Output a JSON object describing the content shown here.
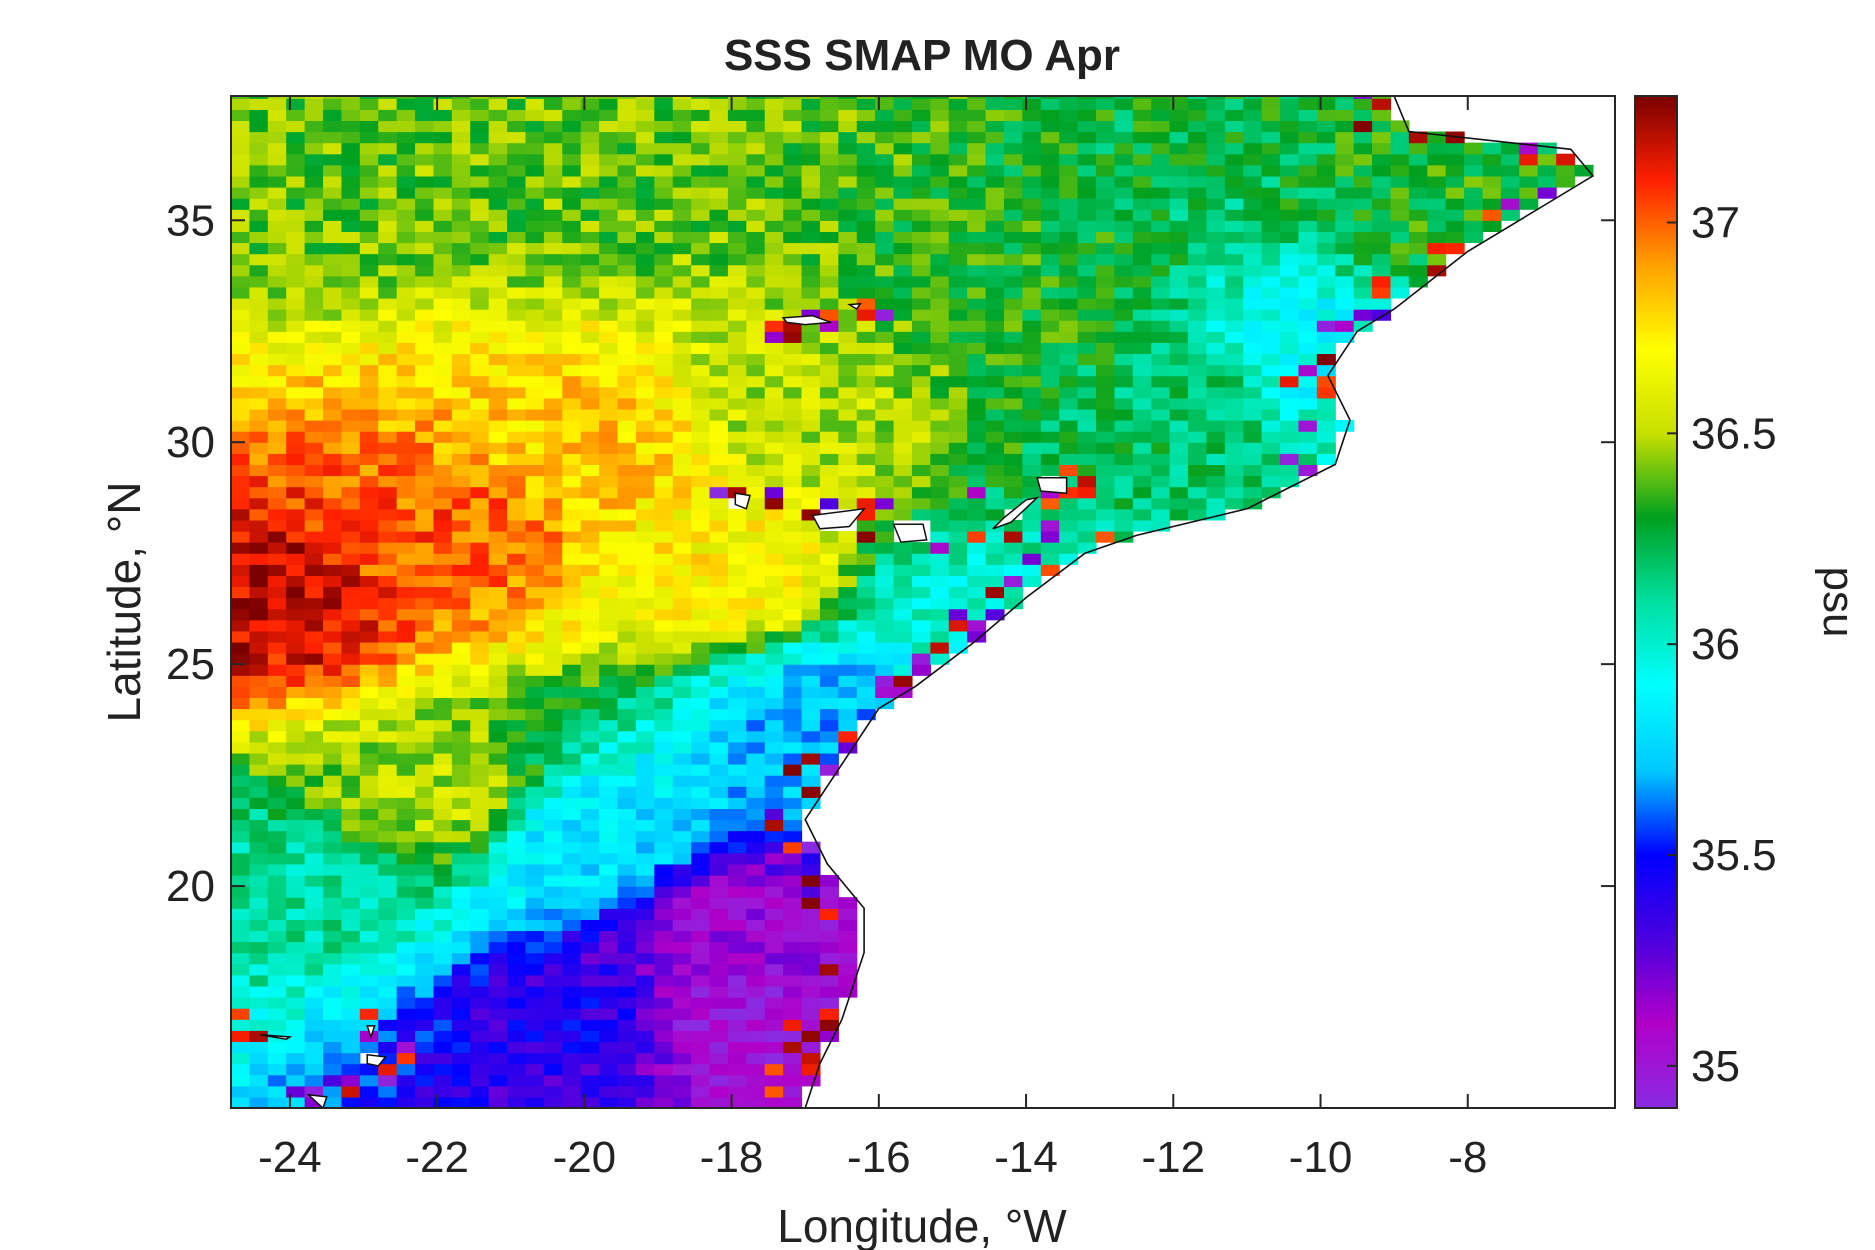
{
  "chart_data": {
    "type": "heatmap",
    "title": "SSS SMAP MO Apr",
    "xlabel": "Longitude, °W",
    "ylabel": "Latitude, °N",
    "colorbar_label": "psu",
    "xlim": [
      -24.8,
      -6.0
    ],
    "ylim": [
      15.0,
      37.8
    ],
    "xticks": [
      -24,
      -22,
      -20,
      -18,
      -16,
      -14,
      -12,
      -10,
      -8
    ],
    "xtick_labels": [
      "-24",
      "-22",
      "-20",
      "-18",
      "-16",
      "-14",
      "-12",
      "-10",
      "-8"
    ],
    "yticks": [
      20,
      25,
      30,
      35
    ],
    "ytick_labels": [
      "20",
      "25",
      "30",
      "35"
    ],
    "colorbar_range": [
      34.9,
      37.3
    ],
    "colorbar_ticks": [
      35,
      35.5,
      36,
      36.5,
      37
    ],
    "colorbar_tick_labels": [
      "35",
      "35.5",
      "36",
      "36.5",
      "37"
    ],
    "colormap": [
      "#8a2be2",
      "#b000c8",
      "#4b00e0",
      "#0000ff",
      "#00c8ff",
      "#00ffff",
      "#00e0a0",
      "#00a020",
      "#c8e000",
      "#ffff00",
      "#ffa000",
      "#ff2000",
      "#7a0000"
    ],
    "grid_resolution_deg": 0.25,
    "field_description_points": [
      {
        "lon": -24.5,
        "lat": 26.5,
        "sss": 37.2
      },
      {
        "lon": -22,
        "lat": 28,
        "sss": 37.0
      },
      {
        "lon": -20,
        "lat": 30,
        "sss": 36.8
      },
      {
        "lon": -18,
        "lat": 27,
        "sss": 36.7
      },
      {
        "lon": -17,
        "lat": 31,
        "sss": 36.5
      },
      {
        "lon": -14,
        "lat": 33,
        "sss": 36.3
      },
      {
        "lon": -12,
        "lat": 31,
        "sss": 36.2
      },
      {
        "lon": -10,
        "lat": 32,
        "sss": 35.9
      },
      {
        "lon": -8,
        "lat": 35,
        "sss": 36.3
      },
      {
        "lon": -24,
        "lat": 36,
        "sss": 36.4
      },
      {
        "lon": -20,
        "lat": 36,
        "sss": 36.4
      },
      {
        "lon": -22,
        "lat": 22,
        "sss": 36.5
      },
      {
        "lon": -24,
        "lat": 20,
        "sss": 36.1
      },
      {
        "lon": -20,
        "lat": 21,
        "sss": 35.8
      },
      {
        "lon": -18,
        "lat": 19,
        "sss": 35.1
      },
      {
        "lon": -18,
        "lat": 17,
        "sss": 35.0
      },
      {
        "lon": -20,
        "lat": 17,
        "sss": 35.4
      },
      {
        "lon": -16.5,
        "lat": 24,
        "sss": 35.7
      },
      {
        "lon": -15,
        "lat": 26,
        "sss": 36.0
      }
    ],
    "coastline_lonlat": [
      [
        -9.0,
        37.8
      ],
      [
        -8.8,
        37.0
      ],
      [
        -6.6,
        36.6
      ],
      [
        -6.3,
        36.0
      ],
      [
        -7.0,
        35.3
      ],
      [
        -8.0,
        34.3
      ],
      [
        -9.0,
        33.0
      ],
      [
        -9.5,
        32.5
      ],
      [
        -9.9,
        31.5
      ],
      [
        -9.6,
        30.5
      ],
      [
        -9.8,
        29.5
      ],
      [
        -11.0,
        28.5
      ],
      [
        -12.5,
        27.9
      ],
      [
        -13.2,
        27.5
      ],
      [
        -14.0,
        26.5
      ],
      [
        -14.7,
        25.5
      ],
      [
        -15.5,
        24.5
      ],
      [
        -16.0,
        24.0
      ],
      [
        -16.6,
        22.5
      ],
      [
        -17.0,
        21.5
      ],
      [
        -16.7,
        20.5
      ],
      [
        -16.2,
        19.5
      ],
      [
        -16.2,
        18.5
      ],
      [
        -16.5,
        17.0
      ],
      [
        -16.8,
        16.0
      ],
      [
        -17.0,
        15.0
      ]
    ],
    "islands_lonlat": [
      {
        "name_unprinted": "madeira",
        "pts": [
          [
            -17.3,
            32.8
          ],
          [
            -16.9,
            32.85
          ],
          [
            -16.65,
            32.7
          ],
          [
            -17.0,
            32.65
          ],
          [
            -17.25,
            32.7
          ]
        ]
      },
      {
        "name_unprinted": "porto-santo",
        "pts": [
          [
            -16.4,
            33.1
          ],
          [
            -16.25,
            33.12
          ],
          [
            -16.3,
            33.0
          ]
        ]
      },
      {
        "name_unprinted": "la-palma",
        "pts": [
          [
            -17.95,
            28.85
          ],
          [
            -17.75,
            28.8
          ],
          [
            -17.8,
            28.5
          ],
          [
            -17.95,
            28.6
          ]
        ]
      },
      {
        "name_unprinted": "tenerife",
        "pts": [
          [
            -16.9,
            28.35
          ],
          [
            -16.2,
            28.5
          ],
          [
            -16.4,
            28.1
          ],
          [
            -16.8,
            28.05
          ]
        ]
      },
      {
        "name_unprinted": "gran-canaria",
        "pts": [
          [
            -15.8,
            28.15
          ],
          [
            -15.4,
            28.15
          ],
          [
            -15.35,
            27.8
          ],
          [
            -15.7,
            27.75
          ]
        ]
      },
      {
        "name_unprinted": "fuerteventura",
        "pts": [
          [
            -14.0,
            28.7
          ],
          [
            -13.85,
            28.75
          ],
          [
            -14.2,
            28.2
          ],
          [
            -14.45,
            28.05
          ],
          [
            -14.3,
            28.3
          ]
        ]
      },
      {
        "name_unprinted": "lanzarote",
        "pts": [
          [
            -13.85,
            29.2
          ],
          [
            -13.45,
            29.2
          ],
          [
            -13.45,
            28.85
          ],
          [
            -13.8,
            28.9
          ]
        ]
      },
      {
        "name_unprinted": "santo-antao",
        "pts": [
          [
            -25.2,
            17.15
          ],
          [
            -24.95,
            17.2
          ],
          [
            -24.9,
            17.0
          ],
          [
            -25.1,
            16.95
          ]
        ]
      },
      {
        "name_unprinted": "sao-nicolau",
        "pts": [
          [
            -24.4,
            16.65
          ],
          [
            -24.0,
            16.6
          ],
          [
            -24.05,
            16.55
          ]
        ]
      },
      {
        "name_unprinted": "sal",
        "pts": [
          [
            -22.95,
            16.85
          ],
          [
            -22.85,
            16.85
          ],
          [
            -22.9,
            16.6
          ]
        ]
      },
      {
        "name_unprinted": "boavista",
        "pts": [
          [
            -22.95,
            16.2
          ],
          [
            -22.7,
            16.15
          ],
          [
            -22.8,
            15.95
          ],
          [
            -22.95,
            16.0
          ]
        ]
      },
      {
        "name_unprinted": "santiago",
        "pts": [
          [
            -23.75,
            15.3
          ],
          [
            -23.5,
            15.25
          ],
          [
            -23.55,
            15.0
          ]
        ]
      }
    ]
  }
}
